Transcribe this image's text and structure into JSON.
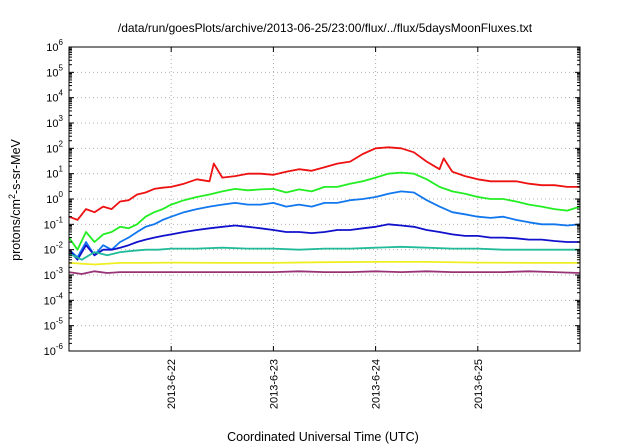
{
  "chart_data": {
    "type": "line",
    "title": "/data/run/goesPlots/archive/2013-06-25/23:00/flux/../flux/5daysMoonFluxes.txt",
    "xlabel": "Coordinated Universal Time (UTC)",
    "ylabel": {
      "base": "protons/cm",
      "sup": "2",
      "rest": "-s-sr-MeV"
    },
    "yscale": "log",
    "ylim": [
      1e-06,
      1000000.0
    ],
    "xlim": [
      "2013-06-21T00:00",
      "2013-06-26T00:00"
    ],
    "grid": true,
    "y_ticks": [
      {
        "value": 1e-06,
        "base": "10",
        "exp": "-6"
      },
      {
        "value": 1e-05,
        "base": "10",
        "exp": "-5"
      },
      {
        "value": 0.0001,
        "base": "10",
        "exp": "-4"
      },
      {
        "value": 0.001,
        "base": "10",
        "exp": "-3"
      },
      {
        "value": 0.01,
        "base": "10",
        "exp": "-2"
      },
      {
        "value": 0.1,
        "base": "10",
        "exp": "-1"
      },
      {
        "value": 1,
        "base": "10",
        "exp": "0"
      },
      {
        "value": 10.0,
        "base": "10",
        "exp": "1"
      },
      {
        "value": 100.0,
        "base": "10",
        "exp": "2"
      },
      {
        "value": 1000.0,
        "base": "10",
        "exp": "3"
      },
      {
        "value": 10000.0,
        "base": "10",
        "exp": "4"
      },
      {
        "value": 100000.0,
        "base": "10",
        "exp": "5"
      },
      {
        "value": 1000000.0,
        "base": "10",
        "exp": "6"
      }
    ],
    "x_ticks": [
      {
        "value": "2013-06-22T00:00",
        "label": "2013-6-22"
      },
      {
        "value": "2013-06-23T00:00",
        "label": "2013-6-23"
      },
      {
        "value": "2013-06-24T00:00",
        "label": "2013-6-24"
      },
      {
        "value": "2013-06-25T00:00",
        "label": "2013-6-25"
      }
    ],
    "series": [
      {
        "color": "#ee1111",
        "x": [
          "2013-06-21T00:00",
          "2013-06-21T02:00",
          "2013-06-21T04:00",
          "2013-06-21T06:00",
          "2013-06-21T08:00",
          "2013-06-21T10:00",
          "2013-06-21T12:00",
          "2013-06-21T14:00",
          "2013-06-21T16:00",
          "2013-06-21T18:00",
          "2013-06-21T20:00",
          "2013-06-21T22:00",
          "2013-06-22T00:00",
          "2013-06-22T03:00",
          "2013-06-22T06:00",
          "2013-06-22T09:00",
          "2013-06-22T10:00",
          "2013-06-22T12:00",
          "2013-06-22T15:00",
          "2013-06-22T18:00",
          "2013-06-22T21:00",
          "2013-06-23T00:00",
          "2013-06-23T03:00",
          "2013-06-23T06:00",
          "2013-06-23T09:00",
          "2013-06-23T12:00",
          "2013-06-23T15:00",
          "2013-06-23T18:00",
          "2013-06-23T21:00",
          "2013-06-24T00:00",
          "2013-06-24T03:00",
          "2013-06-24T06:00",
          "2013-06-24T09:00",
          "2013-06-24T12:00",
          "2013-06-24T15:00",
          "2013-06-24T16:00",
          "2013-06-24T18:00",
          "2013-06-24T21:00",
          "2013-06-25T00:00",
          "2013-06-25T03:00",
          "2013-06-25T06:00",
          "2013-06-25T09:00",
          "2013-06-25T12:00",
          "2013-06-25T15:00",
          "2013-06-25T18:00",
          "2013-06-25T21:00",
          "2013-06-26T00:00"
        ],
        "y": [
          0.2,
          0.15,
          0.4,
          0.3,
          0.5,
          0.4,
          0.8,
          0.9,
          1.5,
          1.8,
          2.5,
          2.8,
          3,
          4,
          6,
          5,
          25,
          7,
          8,
          10,
          10,
          9,
          12,
          15,
          13,
          18,
          25,
          30,
          60,
          100,
          110,
          100,
          70,
          30,
          15,
          40,
          12,
          8,
          6,
          5,
          5,
          5,
          4,
          3.5,
          3.5,
          3,
          3
        ]
      },
      {
        "color": "#22ee22",
        "x": [
          "2013-06-21T00:00",
          "2013-06-21T02:00",
          "2013-06-21T04:00",
          "2013-06-21T06:00",
          "2013-06-21T08:00",
          "2013-06-21T10:00",
          "2013-06-21T12:00",
          "2013-06-21T14:00",
          "2013-06-21T16:00",
          "2013-06-21T18:00",
          "2013-06-21T20:00",
          "2013-06-21T22:00",
          "2013-06-22T00:00",
          "2013-06-22T03:00",
          "2013-06-22T06:00",
          "2013-06-22T09:00",
          "2013-06-22T12:00",
          "2013-06-22T15:00",
          "2013-06-22T18:00",
          "2013-06-22T21:00",
          "2013-06-23T00:00",
          "2013-06-23T03:00",
          "2013-06-23T06:00",
          "2013-06-23T09:00",
          "2013-06-23T12:00",
          "2013-06-23T15:00",
          "2013-06-23T18:00",
          "2013-06-23T21:00",
          "2013-06-24T00:00",
          "2013-06-24T03:00",
          "2013-06-24T06:00",
          "2013-06-24T09:00",
          "2013-06-24T12:00",
          "2013-06-24T15:00",
          "2013-06-24T18:00",
          "2013-06-24T21:00",
          "2013-06-25T00:00",
          "2013-06-25T03:00",
          "2013-06-25T06:00",
          "2013-06-25T09:00",
          "2013-06-25T12:00",
          "2013-06-25T15:00",
          "2013-06-25T18:00",
          "2013-06-25T21:00",
          "2013-06-26T00:00"
        ],
        "y": [
          0.03,
          0.01,
          0.05,
          0.02,
          0.04,
          0.05,
          0.08,
          0.07,
          0.1,
          0.2,
          0.3,
          0.4,
          0.6,
          0.9,
          1.2,
          1.5,
          2,
          2.5,
          2.2,
          2.4,
          2.5,
          1.8,
          2.4,
          2,
          3,
          3,
          4,
          5,
          7,
          10,
          11,
          10,
          6,
          3,
          2,
          1.6,
          1.2,
          1,
          1,
          0.8,
          0.6,
          0.5,
          0.4,
          0.35,
          0.5
        ]
      },
      {
        "color": "#1177ee",
        "x": [
          "2013-06-21T00:00",
          "2013-06-21T02:00",
          "2013-06-21T04:00",
          "2013-06-21T06:00",
          "2013-06-21T08:00",
          "2013-06-21T10:00",
          "2013-06-21T12:00",
          "2013-06-21T14:00",
          "2013-06-21T16:00",
          "2013-06-21T18:00",
          "2013-06-21T20:00",
          "2013-06-21T22:00",
          "2013-06-22T00:00",
          "2013-06-22T03:00",
          "2013-06-22T06:00",
          "2013-06-22T09:00",
          "2013-06-22T12:00",
          "2013-06-22T15:00",
          "2013-06-22T18:00",
          "2013-06-22T21:00",
          "2013-06-23T00:00",
          "2013-06-23T03:00",
          "2013-06-23T06:00",
          "2013-06-23T09:00",
          "2013-06-23T12:00",
          "2013-06-23T15:00",
          "2013-06-23T18:00",
          "2013-06-23T21:00",
          "2013-06-24T00:00",
          "2013-06-24T03:00",
          "2013-06-24T06:00",
          "2013-06-24T09:00",
          "2013-06-24T12:00",
          "2013-06-24T15:00",
          "2013-06-24T18:00",
          "2013-06-24T21:00",
          "2013-06-25T00:00",
          "2013-06-25T03:00",
          "2013-06-25T06:00",
          "2013-06-25T09:00",
          "2013-06-25T12:00",
          "2013-06-25T15:00",
          "2013-06-25T18:00",
          "2013-06-25T21:00",
          "2013-06-26T00:00"
        ],
        "y": [
          0.01,
          0.005,
          0.02,
          0.006,
          0.015,
          0.01,
          0.02,
          0.03,
          0.05,
          0.08,
          0.1,
          0.15,
          0.2,
          0.3,
          0.4,
          0.5,
          0.6,
          0.7,
          0.6,
          0.6,
          0.7,
          0.5,
          0.6,
          0.5,
          0.7,
          0.7,
          0.9,
          1,
          1.2,
          1.6,
          2,
          1.8,
          0.9,
          0.5,
          0.3,
          0.25,
          0.2,
          0.18,
          0.2,
          0.15,
          0.12,
          0.1,
          0.1,
          0.09,
          0.1
        ]
      },
      {
        "color": "#1111cc",
        "x": [
          "2013-06-21T00:00",
          "2013-06-21T02:00",
          "2013-06-21T04:00",
          "2013-06-21T06:00",
          "2013-06-21T08:00",
          "2013-06-21T10:00",
          "2013-06-21T12:00",
          "2013-06-21T14:00",
          "2013-06-21T16:00",
          "2013-06-21T18:00",
          "2013-06-21T20:00",
          "2013-06-21T22:00",
          "2013-06-22T00:00",
          "2013-06-22T03:00",
          "2013-06-22T06:00",
          "2013-06-22T09:00",
          "2013-06-22T12:00",
          "2013-06-22T15:00",
          "2013-06-22T18:00",
          "2013-06-22T21:00",
          "2013-06-23T00:00",
          "2013-06-23T03:00",
          "2013-06-23T06:00",
          "2013-06-23T09:00",
          "2013-06-23T12:00",
          "2013-06-23T15:00",
          "2013-06-23T18:00",
          "2013-06-23T21:00",
          "2013-06-24T00:00",
          "2013-06-24T03:00",
          "2013-06-24T06:00",
          "2013-06-24T09:00",
          "2013-06-24T12:00",
          "2013-06-24T15:00",
          "2013-06-24T18:00",
          "2013-06-24T21:00",
          "2013-06-25T00:00",
          "2013-06-25T03:00",
          "2013-06-25T06:00",
          "2013-06-25T09:00",
          "2013-06-25T12:00",
          "2013-06-25T15:00",
          "2013-06-25T18:00",
          "2013-06-25T21:00",
          "2013-06-26T00:00"
        ],
        "y": [
          0.01,
          0.004,
          0.015,
          0.006,
          0.01,
          0.01,
          0.012,
          0.015,
          0.02,
          0.025,
          0.03,
          0.035,
          0.04,
          0.05,
          0.06,
          0.07,
          0.08,
          0.09,
          0.08,
          0.07,
          0.06,
          0.05,
          0.05,
          0.045,
          0.05,
          0.06,
          0.06,
          0.07,
          0.08,
          0.1,
          0.09,
          0.08,
          0.06,
          0.05,
          0.04,
          0.035,
          0.035,
          0.03,
          0.03,
          0.028,
          0.025,
          0.025,
          0.022,
          0.02,
          0.02
        ]
      },
      {
        "color": "#22bb99",
        "x": [
          "2013-06-21T00:00",
          "2013-06-21T03:00",
          "2013-06-21T06:00",
          "2013-06-21T09:00",
          "2013-06-21T12:00",
          "2013-06-21T15:00",
          "2013-06-21T18:00",
          "2013-06-21T21:00",
          "2013-06-22T00:00",
          "2013-06-22T06:00",
          "2013-06-22T12:00",
          "2013-06-22T18:00",
          "2013-06-23T00:00",
          "2013-06-23T06:00",
          "2013-06-23T12:00",
          "2013-06-23T18:00",
          "2013-06-24T00:00",
          "2013-06-24T06:00",
          "2013-06-24T12:00",
          "2013-06-24T18:00",
          "2013-06-25T00:00",
          "2013-06-25T06:00",
          "2013-06-25T12:00",
          "2013-06-25T18:00",
          "2013-06-26T00:00"
        ],
        "y": [
          0.007,
          0.004,
          0.008,
          0.006,
          0.008,
          0.009,
          0.01,
          0.01,
          0.011,
          0.011,
          0.012,
          0.011,
          0.011,
          0.01,
          0.011,
          0.011,
          0.012,
          0.013,
          0.012,
          0.011,
          0.011,
          0.01,
          0.01,
          0.01,
          0.01
        ]
      },
      {
        "color": "#eeee22",
        "x": [
          "2013-06-21T00:00",
          "2013-06-21T06:00",
          "2013-06-21T12:00",
          "2013-06-21T18:00",
          "2013-06-22T00:00",
          "2013-06-22T12:00",
          "2013-06-23T00:00",
          "2013-06-23T12:00",
          "2013-06-24T00:00",
          "2013-06-24T12:00",
          "2013-06-25T00:00",
          "2013-06-25T12:00",
          "2013-06-26T00:00"
        ],
        "y": [
          0.003,
          0.0026,
          0.003,
          0.003,
          0.0031,
          0.003,
          0.003,
          0.0032,
          0.0033,
          0.0033,
          0.0031,
          0.003,
          0.003
        ]
      },
      {
        "color": "#993377",
        "x": [
          "2013-06-21T00:00",
          "2013-06-21T03:00",
          "2013-06-21T06:00",
          "2013-06-21T09:00",
          "2013-06-21T12:00",
          "2013-06-21T18:00",
          "2013-06-22T00:00",
          "2013-06-22T06:00",
          "2013-06-22T12:00",
          "2013-06-22T18:00",
          "2013-06-23T00:00",
          "2013-06-23T06:00",
          "2013-06-23T12:00",
          "2013-06-23T18:00",
          "2013-06-24T00:00",
          "2013-06-24T06:00",
          "2013-06-24T12:00",
          "2013-06-24T18:00",
          "2013-06-25T00:00",
          "2013-06-25T06:00",
          "2013-06-25T12:00",
          "2013-06-25T18:00",
          "2013-06-26T00:00"
        ],
        "y": [
          0.0013,
          0.0011,
          0.0014,
          0.0012,
          0.0013,
          0.0013,
          0.0013,
          0.0013,
          0.0013,
          0.0013,
          0.0013,
          0.0014,
          0.0013,
          0.0013,
          0.0014,
          0.0013,
          0.0014,
          0.0013,
          0.0013,
          0.0013,
          0.0014,
          0.0013,
          0.0012
        ]
      }
    ]
  }
}
